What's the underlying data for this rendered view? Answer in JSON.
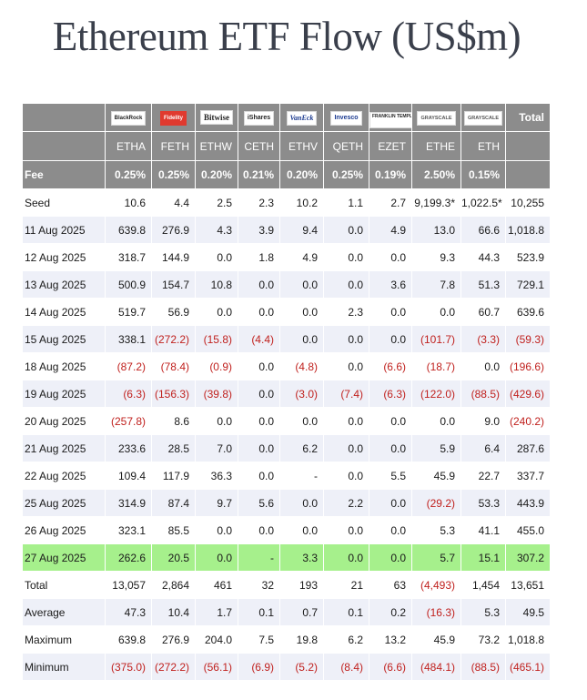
{
  "title": "Ethereum ETF Flow (US$m)",
  "header": {
    "total_label": "Total",
    "fee_label": "Fee",
    "issuers": [
      "BlackRock",
      "Fidelity",
      "Bitwise",
      "iShares",
      "VanEck",
      "Invesco",
      "FRANKLIN TEMPLETON",
      "GRAYSCALE",
      "GRAYSCALE"
    ],
    "tickers": [
      "ETHA",
      "FETH",
      "ETHW",
      "CETH",
      "ETHV",
      "QETH",
      "EZET",
      "ETHE",
      "ETH"
    ],
    "fees": [
      "0.25%",
      "0.25%",
      "0.20%",
      "0.21%",
      "0.20%",
      "0.25%",
      "0.19%",
      "2.50%",
      "0.15%"
    ]
  },
  "colors": {
    "header_bg": "#8c8c8c",
    "stripe": "#eef0f8",
    "highlight": "#a6f08c",
    "negative": "#c0211e"
  },
  "chart_data": {
    "type": "table",
    "title": "Ethereum ETF Flow (US$m)",
    "columns": [
      "ETHA",
      "FETH",
      "ETHW",
      "CETH",
      "ETHV",
      "QETH",
      "EZET",
      "ETHE",
      "ETH",
      "Total"
    ],
    "rows": [
      {
        "label": "Seed",
        "cells": [
          "10.6",
          "4.4",
          "2.5",
          "2.3",
          "10.2",
          "1.1",
          "2.7",
          "9,199.3*",
          "1,022.5*",
          "10,255"
        ]
      },
      {
        "label": "11 Aug 2025",
        "cells": [
          "639.8",
          "276.9",
          "4.3",
          "3.9",
          "9.4",
          "0.0",
          "4.9",
          "13.0",
          "66.6",
          "1,018.8"
        ]
      },
      {
        "label": "12 Aug 2025",
        "cells": [
          "318.7",
          "144.9",
          "0.0",
          "1.8",
          "4.9",
          "0.0",
          "0.0",
          "9.3",
          "44.3",
          "523.9"
        ]
      },
      {
        "label": "13 Aug 2025",
        "cells": [
          "500.9",
          "154.7",
          "10.8",
          "0.0",
          "0.0",
          "0.0",
          "3.6",
          "7.8",
          "51.3",
          "729.1"
        ]
      },
      {
        "label": "14 Aug 2025",
        "cells": [
          "519.7",
          "56.9",
          "0.0",
          "0.0",
          "0.0",
          "2.3",
          "0.0",
          "0.0",
          "60.7",
          "639.6"
        ]
      },
      {
        "label": "15 Aug 2025",
        "cells": [
          "338.1",
          "(272.2)",
          "(15.8)",
          "(4.4)",
          "0.0",
          "0.0",
          "0.0",
          "(101.7)",
          "(3.3)",
          "(59.3)"
        ]
      },
      {
        "label": "18 Aug 2025",
        "cells": [
          "(87.2)",
          "(78.4)",
          "(0.9)",
          "0.0",
          "(4.8)",
          "0.0",
          "(6.6)",
          "(18.7)",
          "0.0",
          "(196.6)"
        ]
      },
      {
        "label": "19 Aug 2025",
        "cells": [
          "(6.3)",
          "(156.3)",
          "(39.8)",
          "0.0",
          "(3.0)",
          "(7.4)",
          "(6.3)",
          "(122.0)",
          "(88.5)",
          "(429.6)"
        ]
      },
      {
        "label": "20 Aug 2025",
        "cells": [
          "(257.8)",
          "8.6",
          "0.0",
          "0.0",
          "0.0",
          "0.0",
          "0.0",
          "0.0",
          "9.0",
          "(240.2)"
        ]
      },
      {
        "label": "21 Aug 2025",
        "cells": [
          "233.6",
          "28.5",
          "7.0",
          "0.0",
          "6.2",
          "0.0",
          "0.0",
          "5.9",
          "6.4",
          "287.6"
        ]
      },
      {
        "label": "22 Aug 2025",
        "cells": [
          "109.4",
          "117.9",
          "36.3",
          "0.0",
          "-",
          "0.0",
          "5.5",
          "45.9",
          "22.7",
          "337.7"
        ]
      },
      {
        "label": "25 Aug 2025",
        "cells": [
          "314.9",
          "87.4",
          "9.7",
          "5.6",
          "0.0",
          "2.2",
          "0.0",
          "(29.2)",
          "53.3",
          "443.9"
        ]
      },
      {
        "label": "26 Aug 2025",
        "cells": [
          "323.1",
          "85.5",
          "0.0",
          "0.0",
          "0.0",
          "0.0",
          "0.0",
          "5.3",
          "41.1",
          "455.0"
        ]
      },
      {
        "label": "27 Aug 2025",
        "highlight": true,
        "cells": [
          "262.6",
          "20.5",
          "0.0",
          "-",
          "3.3",
          "0.0",
          "0.0",
          "5.7",
          "15.1",
          "307.2"
        ]
      },
      {
        "label": "Total",
        "cells": [
          "13,057",
          "2,864",
          "461",
          "32",
          "193",
          "21",
          "63",
          "(4,493)",
          "1,454",
          "13,651"
        ]
      },
      {
        "label": "Average",
        "cells": [
          "47.3",
          "10.4",
          "1.7",
          "0.1",
          "0.7",
          "0.1",
          "0.2",
          "(16.3)",
          "5.3",
          "49.5"
        ]
      },
      {
        "label": "Maximum",
        "cells": [
          "639.8",
          "276.9",
          "204.0",
          "7.5",
          "19.8",
          "6.2",
          "13.2",
          "45.9",
          "73.2",
          "1,018.8"
        ]
      },
      {
        "label": "Minimum",
        "cells": [
          "(375.0)",
          "(272.2)",
          "(56.1)",
          "(6.9)",
          "(5.2)",
          "(8.4)",
          "(6.6)",
          "(484.1)",
          "(88.5)",
          "(465.1)"
        ]
      }
    ]
  }
}
